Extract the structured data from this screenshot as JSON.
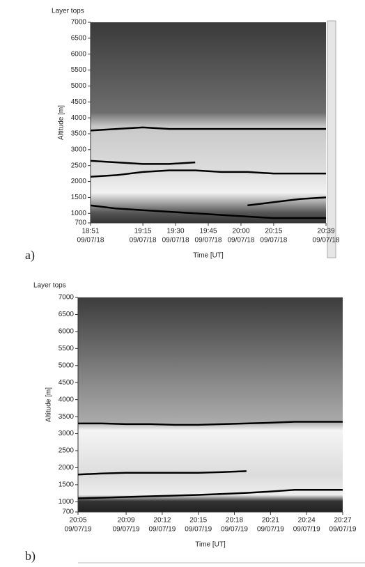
{
  "chart_data": [
    {
      "type": "line",
      "panel": "a)",
      "title": "Layer tops",
      "xlabel": "Time [UT]",
      "ylabel": "Altitude [m]",
      "xlim": [
        0,
        108
      ],
      "ylim": [
        700,
        7000
      ],
      "xticks": [
        {
          "value": 0,
          "label": "18:51",
          "date": "09/07/18"
        },
        {
          "value": 24,
          "label": "19:15",
          "date": "09/07/18"
        },
        {
          "value": 39,
          "label": "19:30",
          "date": "09/07/18"
        },
        {
          "value": 54,
          "label": "19:45",
          "date": "09/07/18"
        },
        {
          "value": 69,
          "label": "20:00",
          "date": "09/07/18"
        },
        {
          "value": 84,
          "label": "20:15",
          "date": "09/07/18"
        },
        {
          "value": 108,
          "label": "20:39",
          "date": "09/07/18"
        }
      ],
      "yticks": [
        700,
        1000,
        1500,
        2000,
        2500,
        3000,
        3500,
        4000,
        4500,
        5000,
        5500,
        6000,
        6500,
        7000
      ],
      "x": [
        0,
        12,
        24,
        36,
        48,
        60,
        72,
        84,
        96,
        108
      ],
      "series": [
        {
          "color": "#000000",
          "values": [
            3600,
            3650,
            3700,
            3650,
            3650,
            3650,
            3650,
            3650,
            3650,
            3650
          ]
        },
        {
          "color": "#000000",
          "values": [
            2150,
            2200,
            2300,
            2350,
            2350,
            2300,
            2300,
            2250,
            2250,
            2250
          ]
        },
        {
          "color": "#000000",
          "values": [
            2650,
            2600,
            2550,
            2550,
            2600,
            null,
            null,
            null,
            null,
            null
          ]
        },
        {
          "color": "#000000",
          "values": [
            1250,
            1150,
            1100,
            1050,
            1000,
            950,
            900,
            850,
            850,
            850
          ]
        },
        {
          "color": "#000000",
          "values": [
            null,
            null,
            null,
            null,
            null,
            null,
            1250,
            1350,
            1450,
            1500
          ]
        }
      ]
    },
    {
      "type": "line",
      "panel": "b)",
      "title": "Layer tops",
      "xlabel": "Time [UT]",
      "ylabel": "Altitude [m]",
      "xlim": [
        0,
        22
      ],
      "ylim": [
        700,
        7000
      ],
      "xticks": [
        {
          "value": 0,
          "label": "20:05",
          "date": "09/07/19"
        },
        {
          "value": 4,
          "label": "20:09",
          "date": "09/07/19"
        },
        {
          "value": 7,
          "label": "20:12",
          "date": "09/07/19"
        },
        {
          "value": 10,
          "label": "20:15",
          "date": "09/07/19"
        },
        {
          "value": 13,
          "label": "20:18",
          "date": "09/07/19"
        },
        {
          "value": 16,
          "label": "20:21",
          "date": "09/07/19"
        },
        {
          "value": 19,
          "label": "20:24",
          "date": "09/07/19"
        },
        {
          "value": 22,
          "label": "20:27",
          "date": "09/07/19"
        }
      ],
      "yticks": [
        700,
        1000,
        1500,
        2000,
        2500,
        3000,
        3500,
        4000,
        4500,
        5000,
        5500,
        6000,
        6500,
        7000
      ],
      "x": [
        0,
        2,
        4,
        6,
        8,
        10,
        12,
        14,
        16,
        18,
        20,
        22
      ],
      "series": [
        {
          "color": "#000000",
          "values": [
            3300,
            3300,
            3280,
            3280,
            3260,
            3260,
            3280,
            3300,
            3320,
            3350,
            3350,
            3350
          ]
        },
        {
          "color": "#000000",
          "values": [
            1800,
            1830,
            1850,
            1850,
            1850,
            1850,
            1870,
            1900,
            null,
            null,
            null,
            null
          ]
        },
        {
          "color": "#000000",
          "values": [
            1100,
            1120,
            1140,
            1160,
            1180,
            1200,
            1230,
            1260,
            1300,
            1350,
            1350,
            1350
          ]
        }
      ]
    }
  ]
}
